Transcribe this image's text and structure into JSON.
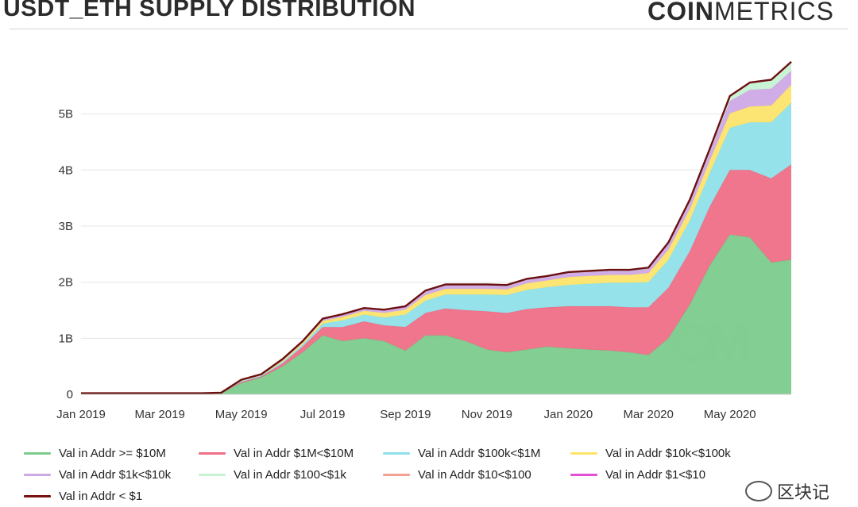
{
  "header": {
    "title": "USDT_ETH SUPPLY DISTRIBUTION",
    "brand_bold": "COIN",
    "brand_light": "METRICS"
  },
  "watermark": {
    "text": "区块记",
    "logo_text": "CM"
  },
  "chart_data": {
    "type": "area",
    "stacked": true,
    "title": "USDT_ETH SUPPLY DISTRIBUTION",
    "xlabel": "",
    "ylabel": "",
    "x_tick_labels": [
      "Jan 2019",
      "Mar 2019",
      "May 2019",
      "Jul 2019",
      "Sep 2019",
      "Nov 2019",
      "Jan 2020",
      "Mar 2020",
      "May 2020"
    ],
    "y_tick_labels": [
      "0",
      "1B",
      "2B",
      "3B",
      "4B",
      "5B"
    ],
    "ylim": [
      0,
      5900000000
    ],
    "grid": true,
    "legend_position": "bottom",
    "x": [
      "2019-01-01",
      "2019-02-01",
      "2019-03-01",
      "2019-04-01",
      "2019-04-16",
      "2019-05-01",
      "2019-05-16",
      "2019-06-01",
      "2019-06-16",
      "2019-07-01",
      "2019-07-16",
      "2019-08-01",
      "2019-08-16",
      "2019-09-01",
      "2019-09-16",
      "2019-10-01",
      "2019-10-16",
      "2019-11-01",
      "2019-11-16",
      "2019-12-01",
      "2019-12-16",
      "2020-01-01",
      "2020-01-16",
      "2020-02-01",
      "2020-02-16",
      "2020-03-01",
      "2020-03-16",
      "2020-04-01",
      "2020-04-16",
      "2020-05-01",
      "2020-05-16",
      "2020-06-01",
      "2020-06-16"
    ],
    "series": [
      {
        "name": "Val in Addr >= $10M",
        "color": "#7ccb8d",
        "values": [
          0.02,
          0.02,
          0.02,
          0.02,
          0.03,
          0.2,
          0.3,
          0.5,
          0.75,
          1.05,
          0.95,
          1.0,
          0.95,
          0.78,
          1.05,
          1.05,
          0.95,
          0.8,
          0.75,
          0.8,
          0.85,
          0.82,
          0.8,
          0.78,
          0.75,
          0.7,
          1.0,
          1.6,
          2.3,
          2.85,
          2.8,
          2.35,
          2.4
        ]
      },
      {
        "name": "Val in Addr $1M<$10M",
        "color": "#ee6f86",
        "values": [
          0.0,
          0.0,
          0.0,
          0.0,
          0.0,
          0.02,
          0.02,
          0.05,
          0.1,
          0.15,
          0.25,
          0.3,
          0.28,
          0.42,
          0.4,
          0.48,
          0.55,
          0.68,
          0.7,
          0.72,
          0.7,
          0.75,
          0.77,
          0.79,
          0.8,
          0.85,
          0.9,
          0.95,
          1.05,
          1.15,
          1.2,
          1.5,
          1.7
        ]
      },
      {
        "name": "Val in Addr $100k<$1M",
        "color": "#8fe0ea",
        "values": [
          0.0,
          0.0,
          0.0,
          0.0,
          0.0,
          0.02,
          0.02,
          0.03,
          0.04,
          0.06,
          0.12,
          0.12,
          0.14,
          0.22,
          0.22,
          0.25,
          0.28,
          0.3,
          0.32,
          0.34,
          0.36,
          0.38,
          0.4,
          0.42,
          0.44,
          0.45,
          0.5,
          0.55,
          0.6,
          0.75,
          0.85,
          1.0,
          1.1
        ]
      },
      {
        "name": "Val in Addr  $10k<$100k",
        "color": "#fce46a",
        "values": [
          0.0,
          0.0,
          0.0,
          0.0,
          0.0,
          0.01,
          0.01,
          0.02,
          0.03,
          0.05,
          0.06,
          0.07,
          0.08,
          0.09,
          0.1,
          0.1,
          0.1,
          0.1,
          0.1,
          0.12,
          0.12,
          0.14,
          0.14,
          0.14,
          0.14,
          0.16,
          0.18,
          0.2,
          0.22,
          0.26,
          0.28,
          0.3,
          0.32
        ]
      },
      {
        "name": "Val in Addr $1k<$10k",
        "color": "#cfa9e6",
        "values": [
          0.0,
          0.0,
          0.0,
          0.0,
          0.0,
          0.01,
          0.01,
          0.02,
          0.02,
          0.03,
          0.04,
          0.04,
          0.05,
          0.05,
          0.06,
          0.06,
          0.06,
          0.06,
          0.06,
          0.06,
          0.06,
          0.07,
          0.07,
          0.07,
          0.07,
          0.08,
          0.1,
          0.12,
          0.15,
          0.22,
          0.3,
          0.3,
          0.25
        ]
      },
      {
        "name": "Val in Addr  $100<$1k",
        "color": "#c6f2d2",
        "values": [
          0.0,
          0.0,
          0.0,
          0.0,
          0.0,
          0.0,
          0.0,
          0.01,
          0.01,
          0.01,
          0.01,
          0.01,
          0.01,
          0.01,
          0.02,
          0.02,
          0.02,
          0.02,
          0.02,
          0.02,
          0.02,
          0.02,
          0.02,
          0.02,
          0.02,
          0.02,
          0.03,
          0.04,
          0.05,
          0.08,
          0.12,
          0.15,
          0.15
        ]
      },
      {
        "name": "Val in Addr $10<$100",
        "color": "#f4a191",
        "values": [
          0.0,
          0.0,
          0.0,
          0.0,
          0.0,
          0.0,
          0.0,
          0.0,
          0.0,
          0.0,
          0.0,
          0.0,
          0.0,
          0.0,
          0.0,
          0.0,
          0.0,
          0.0,
          0.0,
          0.0,
          0.0,
          0.0,
          0.0,
          0.0,
          0.0,
          0.0,
          0.0,
          0.01,
          0.01,
          0.01,
          0.01,
          0.01,
          0.01
        ]
      },
      {
        "name": "Val in Addr $1<$10",
        "color": "#e24fd8",
        "values": [
          0.0,
          0.0,
          0.0,
          0.0,
          0.0,
          0.0,
          0.0,
          0.0,
          0.0,
          0.0,
          0.0,
          0.0,
          0.0,
          0.0,
          0.0,
          0.0,
          0.0,
          0.0,
          0.0,
          0.0,
          0.0,
          0.0,
          0.0,
          0.0,
          0.0,
          0.0,
          0.0,
          0.0,
          0.0,
          0.0,
          0.0,
          0.0,
          0.0
        ]
      },
      {
        "name": "Val in Addr < $1",
        "color": "#7a1212",
        "values": [
          0.0,
          0.0,
          0.0,
          0.0,
          0.0,
          0.0,
          0.0,
          0.0,
          0.0,
          0.0,
          0.0,
          0.0,
          0.0,
          0.0,
          0.0,
          0.0,
          0.0,
          0.0,
          0.0,
          0.0,
          0.0,
          0.0,
          0.0,
          0.0,
          0.0,
          0.0,
          0.0,
          0.0,
          0.0,
          0.0,
          0.0,
          0.0,
          0.0
        ]
      }
    ],
    "value_unit": "B"
  }
}
